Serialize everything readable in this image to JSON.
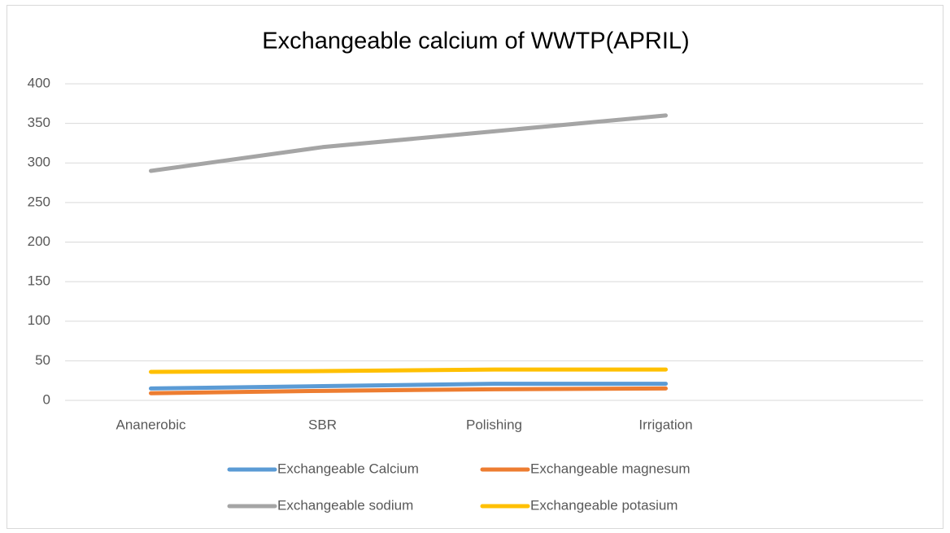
{
  "chart_data": {
    "type": "line",
    "title": "Exchangeable calcium of WWTP(APRIL)",
    "categories": [
      "Ananerobic",
      "SBR",
      "Polishing",
      "Irrigation",
      null
    ],
    "series": [
      {
        "name": "Exchangeable Calcium",
        "color": "#5b9bd5",
        "values": [
          15,
          18,
          21,
          21,
          null
        ]
      },
      {
        "name": "Exchangeable magnesum",
        "color": "#ed7d31",
        "values": [
          9,
          12,
          14,
          15,
          null
        ]
      },
      {
        "name": "Exchangeable sodium",
        "color": "#a5a5a5",
        "values": [
          290,
          320,
          340,
          360,
          null
        ]
      },
      {
        "name": "Exchangeable potasium",
        "color": "#ffc000",
        "values": [
          36,
          37,
          39,
          39,
          null
        ]
      }
    ],
    "ylim": [
      0,
      400
    ],
    "yticks": [
      0,
      50,
      100,
      150,
      200,
      250,
      300,
      350,
      400
    ],
    "grid": true,
    "legend": "bottom"
  }
}
